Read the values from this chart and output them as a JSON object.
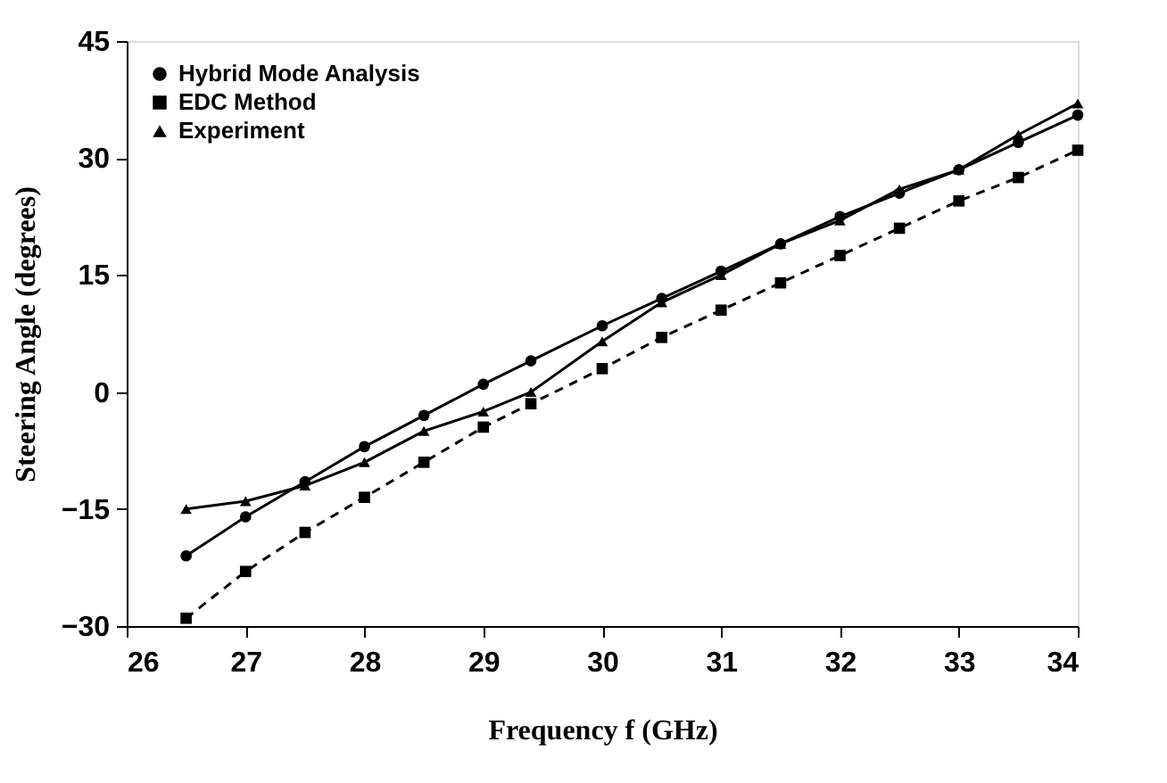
{
  "chart_data": {
    "type": "line",
    "xlabel": "Frequency f (GHz)",
    "ylabel": "Steering Angle (degrees)",
    "x": [
      26.5,
      27,
      27.5,
      28,
      28.5,
      29,
      29.4,
      30,
      30.5,
      31,
      31.5,
      32,
      32.5,
      33,
      33.5,
      34
    ],
    "series": [
      {
        "name": "Hybrid Mode Analysis",
        "color": "#000000",
        "marker": "circle",
        "line_style": "solid",
        "values": [
          -21,
          -16,
          -11.5,
          -7,
          -3,
          1,
          4,
          8.5,
          12,
          15.5,
          19,
          22.5,
          25.5,
          28.5,
          32,
          35.5
        ]
      },
      {
        "name": "EDC Method",
        "color": "#000000",
        "marker": "square",
        "line_style": "dashed",
        "values": [
          -29,
          -23,
          -18,
          -13.5,
          -9,
          -4.5,
          -1.5,
          3,
          7,
          10.5,
          14,
          17.5,
          21,
          24.5,
          27.5,
          31
        ]
      },
      {
        "name": "Experiment",
        "color": "#000000",
        "marker": "triangle",
        "line_style": "solid",
        "values": [
          -15,
          -14,
          -12,
          -9,
          -5,
          -2.5,
          0,
          6.5,
          11.5,
          15,
          19,
          22,
          26,
          28.5,
          33,
          37
        ]
      }
    ],
    "xlim": [
      26,
      34
    ],
    "xticks": [
      26,
      27,
      28,
      29,
      30,
      31,
      32,
      33,
      34
    ],
    "ylim": [
      -30,
      45
    ],
    "yticks": [
      -30,
      -15,
      0,
      15,
      30,
      45
    ],
    "grid": false,
    "legend": "top left"
  }
}
